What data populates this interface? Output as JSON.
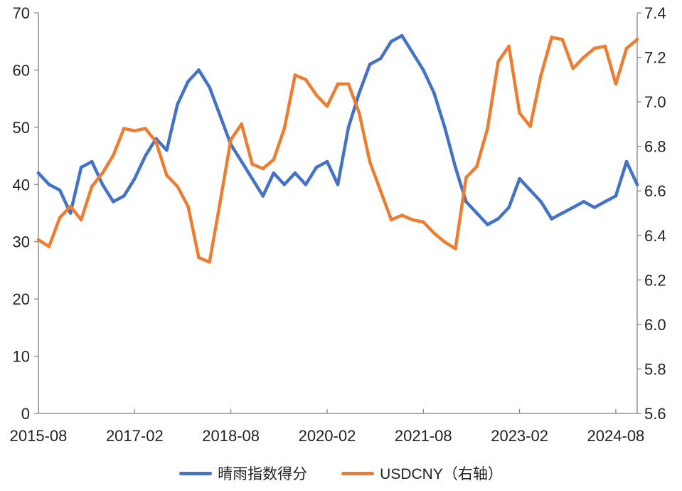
{
  "chart_data": {
    "type": "line",
    "x_ticks": [
      "2015-08",
      "2017-02",
      "2018-08",
      "2020-02",
      "2021-08",
      "2023-02",
      "2024-08"
    ],
    "y_left_ticks": [
      "0",
      "10",
      "20",
      "30",
      "40",
      "50",
      "60",
      "70"
    ],
    "y_right_ticks": [
      "5.6",
      "5.8",
      "6.0",
      "6.2",
      "6.4",
      "6.6",
      "6.8",
      "7.0",
      "7.2",
      "7.4"
    ],
    "ylim_left": [
      0,
      70
    ],
    "ylim_right": [
      5.6,
      7.4
    ],
    "xlim": [
      "2015-08",
      "2024-12"
    ],
    "grid": false,
    "legend_position": "bottom",
    "series": [
      {
        "name": "晴雨指数得分",
        "axis": "left",
        "color": "#4472C4",
        "x": [
          "2015-08",
          "2015-10",
          "2015-12",
          "2016-02",
          "2016-04",
          "2016-06",
          "2016-08",
          "2016-10",
          "2016-12",
          "2017-02",
          "2017-04",
          "2017-06",
          "2017-08",
          "2017-10",
          "2017-12",
          "2018-02",
          "2018-04",
          "2018-06",
          "2018-08",
          "2018-10",
          "2018-12",
          "2019-02",
          "2019-04",
          "2019-06",
          "2019-08",
          "2019-10",
          "2019-12",
          "2020-02",
          "2020-04",
          "2020-06",
          "2020-08",
          "2020-10",
          "2020-12",
          "2021-02",
          "2021-04",
          "2021-06",
          "2021-08",
          "2021-10",
          "2021-12",
          "2022-02",
          "2022-04",
          "2022-06",
          "2022-08",
          "2022-10",
          "2022-12",
          "2023-02",
          "2023-04",
          "2023-06",
          "2023-08",
          "2023-10",
          "2023-12",
          "2024-02",
          "2024-04",
          "2024-06",
          "2024-08",
          "2024-10",
          "2024-12"
        ],
        "values": [
          42,
          40,
          39,
          35,
          43,
          44,
          40,
          37,
          38,
          41,
          45,
          48,
          46,
          54,
          58,
          60,
          57,
          52,
          47,
          44,
          41,
          38,
          42,
          40,
          42,
          40,
          43,
          44,
          40,
          50,
          56,
          61,
          62,
          65,
          66,
          63,
          60,
          56,
          50,
          43,
          37,
          35,
          33,
          34,
          36,
          41,
          39,
          37,
          34,
          35,
          36,
          37,
          36,
          37,
          38,
          44,
          40
        ]
      },
      {
        "name": "USDCNY（右轴）",
        "axis": "right",
        "color": "#ED7D31",
        "x": [
          "2015-08",
          "2015-10",
          "2015-12",
          "2016-02",
          "2016-04",
          "2016-06",
          "2016-08",
          "2016-10",
          "2016-12",
          "2017-02",
          "2017-04",
          "2017-06",
          "2017-08",
          "2017-10",
          "2017-12",
          "2018-02",
          "2018-04",
          "2018-06",
          "2018-08",
          "2018-10",
          "2018-12",
          "2019-02",
          "2019-04",
          "2019-06",
          "2019-08",
          "2019-10",
          "2019-12",
          "2020-02",
          "2020-04",
          "2020-06",
          "2020-08",
          "2020-10",
          "2020-12",
          "2021-02",
          "2021-04",
          "2021-06",
          "2021-08",
          "2021-10",
          "2021-12",
          "2022-02",
          "2022-04",
          "2022-06",
          "2022-08",
          "2022-10",
          "2022-12",
          "2023-02",
          "2023-04",
          "2023-06",
          "2023-08",
          "2023-10",
          "2023-12",
          "2024-02",
          "2024-04",
          "2024-06",
          "2024-08",
          "2024-10",
          "2024-12"
        ],
        "values": [
          6.38,
          6.35,
          6.48,
          6.53,
          6.47,
          6.62,
          6.68,
          6.76,
          6.88,
          6.87,
          6.88,
          6.82,
          6.67,
          6.62,
          6.53,
          6.3,
          6.28,
          6.55,
          6.83,
          6.9,
          6.72,
          6.7,
          6.74,
          6.88,
          7.12,
          7.1,
          7.03,
          6.98,
          7.08,
          7.08,
          6.95,
          6.73,
          6.6,
          6.47,
          6.49,
          6.47,
          6.46,
          6.41,
          6.37,
          6.34,
          6.66,
          6.71,
          6.88,
          7.18,
          7.25,
          6.95,
          6.89,
          7.12,
          7.29,
          7.28,
          7.15,
          7.2,
          7.24,
          7.25,
          7.08,
          7.24,
          7.28
        ]
      }
    ]
  }
}
